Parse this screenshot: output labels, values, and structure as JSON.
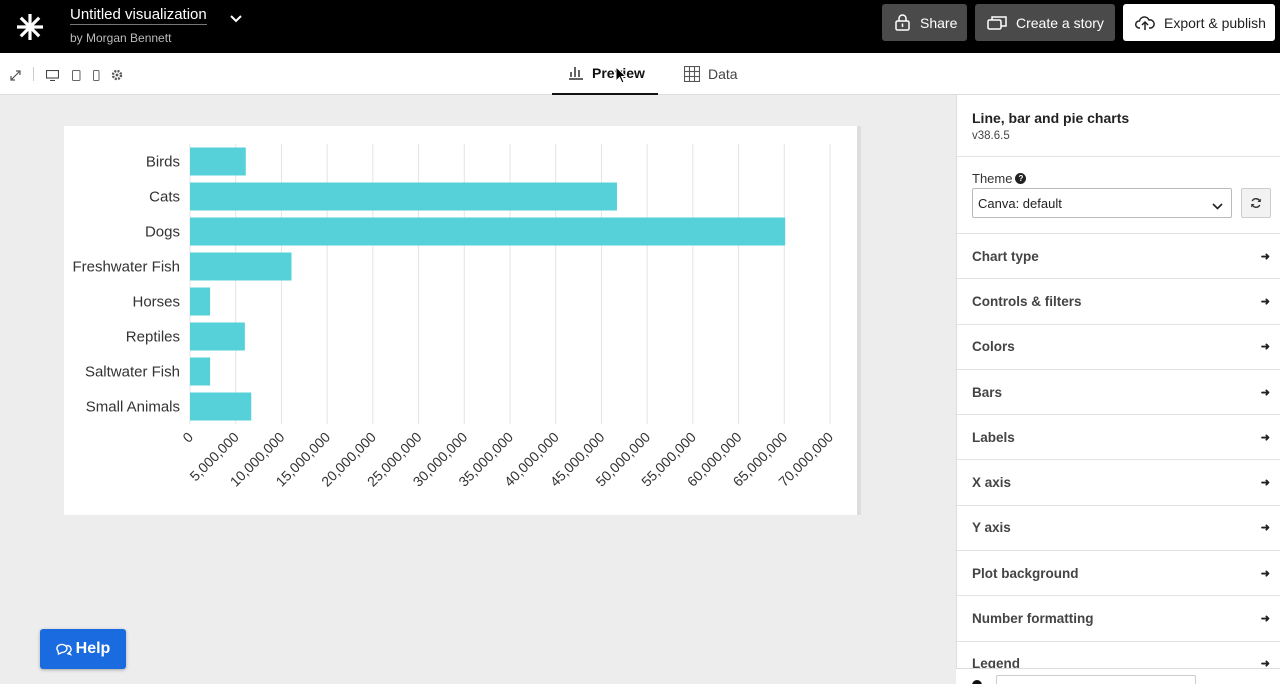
{
  "app": {
    "title": "Untitled visualization",
    "author": "by Morgan Bennett",
    "buttons": {
      "share": "Share",
      "story": "Create a story",
      "export": "Export & publish"
    }
  },
  "view_tabs": {
    "preview": "Preview",
    "data": "Data"
  },
  "panel": {
    "title": "Line, bar and pie charts",
    "version": "v38.6.5",
    "theme_label": "Theme",
    "theme_value": "Canva: default",
    "sections": [
      "Chart type",
      "Controls & filters",
      "Colors",
      "Bars",
      "Labels",
      "X axis",
      "Y axis",
      "Plot background",
      "Number formatting",
      "Legend"
    ]
  },
  "help_label": "Help",
  "colors": {
    "bar": "#57d1d9",
    "topbar": "#000000",
    "help": "#1a6ae0"
  },
  "chart_data": {
    "type": "bar",
    "orientation": "horizontal",
    "categories": [
      "Birds",
      "Cats",
      "Dogs",
      "Freshwater Fish",
      "Horses",
      "Reptiles",
      "Saltwater Fish",
      "Small Animals"
    ],
    "values": [
      6100000,
      46700000,
      65100000,
      11100000,
      2200000,
      6000000,
      2200000,
      6700000
    ],
    "x_ticks": [
      "0",
      "5,000,000",
      "10,000,000",
      "15,000,000",
      "20,000,000",
      "25,000,000",
      "30,000,000",
      "35,000,000",
      "40,000,000",
      "45,000,000",
      "50,000,000",
      "55,000,000",
      "60,000,000",
      "65,000,000",
      "70,000,000"
    ],
    "xlim": [
      0,
      70000000
    ],
    "grid": true
  }
}
